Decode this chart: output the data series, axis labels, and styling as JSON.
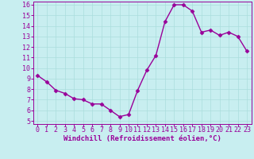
{
  "x": [
    0,
    1,
    2,
    3,
    4,
    5,
    6,
    7,
    8,
    9,
    10,
    11,
    12,
    13,
    14,
    15,
    16,
    17,
    18,
    19,
    20,
    21,
    22,
    23
  ],
  "y": [
    9.3,
    8.7,
    7.9,
    7.6,
    7.1,
    7.0,
    6.6,
    6.6,
    6.0,
    5.4,
    5.6,
    7.9,
    9.8,
    11.2,
    14.4,
    16.0,
    16.0,
    15.4,
    13.4,
    13.6,
    13.1,
    13.4,
    13.0,
    11.6
  ],
  "line_color": "#990099",
  "bg_color": "#c8eef0",
  "grid_color": "#aadddd",
  "xlabel": "Windchill (Refroidissement éolien,°C)",
  "tick_color": "#990099",
  "ylim_min": 5,
  "ylim_max": 16,
  "xlim_min": 0,
  "xlim_max": 23,
  "yticks": [
    5,
    6,
    7,
    8,
    9,
    10,
    11,
    12,
    13,
    14,
    15,
    16
  ],
  "xticks": [
    0,
    1,
    2,
    3,
    4,
    5,
    6,
    7,
    8,
    9,
    10,
    11,
    12,
    13,
    14,
    15,
    16,
    17,
    18,
    19,
    20,
    21,
    22,
    23
  ],
  "marker_size": 2.5,
  "line_width": 1.0,
  "tick_fontsize": 6.0,
  "xlabel_fontsize": 6.5
}
